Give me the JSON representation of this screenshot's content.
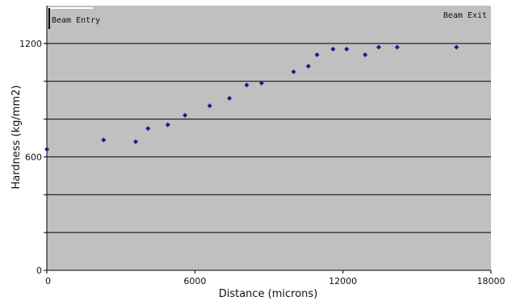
{
  "chart_data": {
    "type": "scatter",
    "title": "",
    "xlabel": "Distance (microns)",
    "ylabel": "Hardness (kg/mm2)",
    "xlim": [
      0,
      18000
    ],
    "ylim": [
      0,
      1400
    ],
    "x_ticks": [
      0,
      6000,
      12000,
      18000
    ],
    "y_ticks": [
      0,
      600,
      1200
    ],
    "gridlines_y": [
      200,
      400,
      600,
      800,
      1000,
      1200
    ],
    "grid": true,
    "legend": "none",
    "plot_background": "#c0c0c0",
    "marker_color": "#1a1a8c",
    "annotations": [
      {
        "text": "Beam Entry",
        "position": "top-left"
      },
      {
        "text": "Beam Exit",
        "position": "top-right"
      }
    ],
    "series": [
      {
        "values_xy": [
          [
            0,
            640
          ],
          [
            2300,
            690
          ],
          [
            3600,
            680
          ],
          [
            4100,
            750
          ],
          [
            4900,
            770
          ],
          [
            5600,
            820
          ],
          [
            6600,
            870
          ],
          [
            7400,
            910
          ],
          [
            8100,
            980
          ],
          [
            8700,
            990
          ],
          [
            10000,
            1050
          ],
          [
            10600,
            1080
          ],
          [
            10950,
            1140
          ],
          [
            11600,
            1170
          ],
          [
            12150,
            1170
          ],
          [
            12900,
            1140
          ],
          [
            13450,
            1180
          ],
          [
            14200,
            1180
          ],
          [
            16600,
            1180
          ]
        ]
      }
    ]
  }
}
